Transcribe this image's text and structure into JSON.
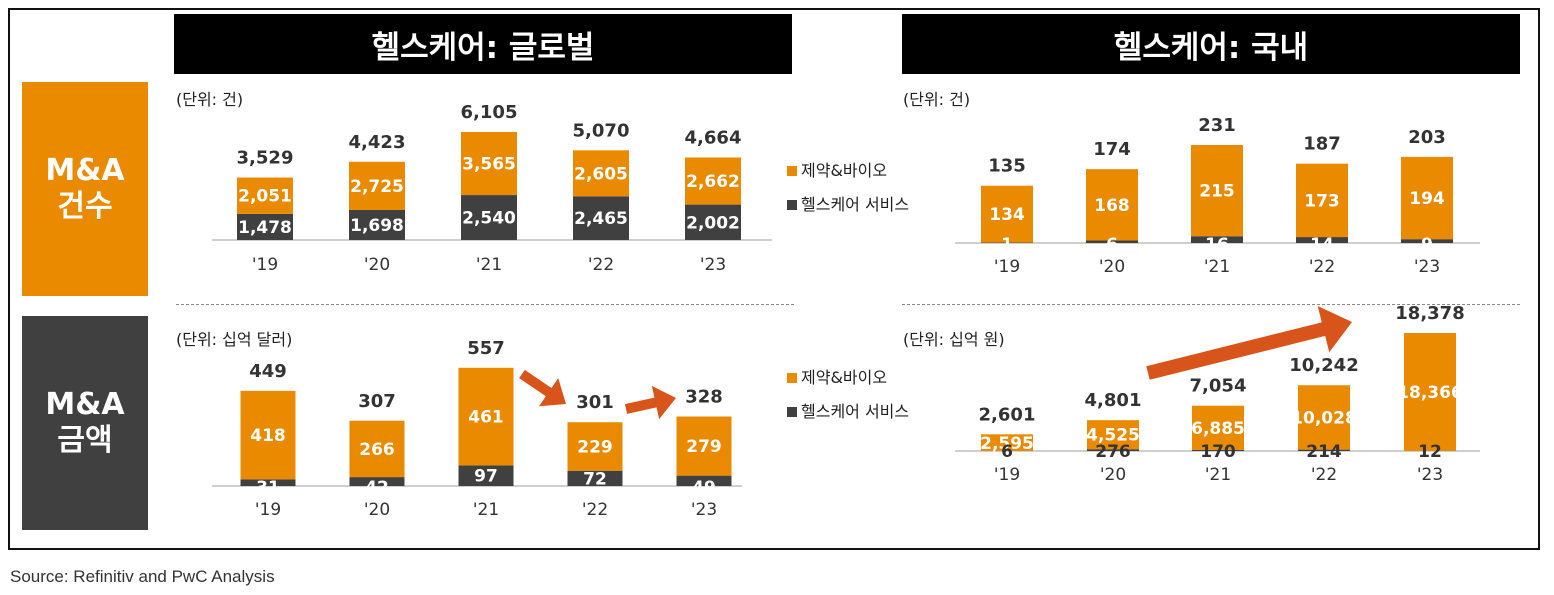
{
  "headers": {
    "global": "헬스케어: 글로벌",
    "domestic": "헬스케어: 국내"
  },
  "row_labels": {
    "count": [
      "M&A",
      "건수"
    ],
    "amount": [
      "M&A",
      "금액"
    ]
  },
  "source": "Source: Refinitiv and PwC Analysis",
  "colors": {
    "pharma": "#E98A00",
    "service": "#404040",
    "arrow": "#D9541B",
    "header": "#000000"
  },
  "chart_data": [
    {
      "id": "global-count",
      "type": "bar",
      "stacked": true,
      "unit_label": "(단위: 건)",
      "categories": [
        "'19",
        "'20",
        "'21",
        "'22",
        "'23"
      ],
      "series": [
        {
          "name": "헬스케어 서비스",
          "values": [
            1478,
            1698,
            2540,
            2465,
            2002
          ]
        },
        {
          "name": "제약&바이오",
          "values": [
            2051,
            2725,
            3565,
            2605,
            2662
          ]
        }
      ],
      "totals": [
        3529,
        4423,
        6105,
        5070,
        4664
      ],
      "legend_position": "right",
      "ylim": [
        0,
        6105
      ]
    },
    {
      "id": "global-amount",
      "type": "bar",
      "stacked": true,
      "unit_label": "(단위: 십억 달러)",
      "categories": [
        "'19",
        "'20",
        "'21",
        "'22",
        "'23"
      ],
      "series": [
        {
          "name": "헬스케어 서비스",
          "values": [
            31,
            42,
            97,
            72,
            49
          ]
        },
        {
          "name": "제약&바이오",
          "values": [
            418,
            266,
            461,
            229,
            279
          ]
        }
      ],
      "totals": [
        449,
        307,
        557,
        301,
        328
      ],
      "legend_position": "right",
      "ylim": [
        0,
        557
      ],
      "annotations": [
        "arrow '21 → '22 (down)",
        "arrow '22 → '23 (up)"
      ]
    },
    {
      "id": "domestic-count",
      "type": "bar",
      "stacked": true,
      "unit_label": "(단위: 건)",
      "categories": [
        "'19",
        "'20",
        "'21",
        "'22",
        "'23"
      ],
      "series": [
        {
          "name": "헬스케어 서비스",
          "values": [
            1,
            6,
            16,
            14,
            9
          ]
        },
        {
          "name": "제약&바이오",
          "values": [
            134,
            168,
            215,
            173,
            194
          ]
        }
      ],
      "totals": [
        135,
        174,
        231,
        187,
        203
      ],
      "ylim": [
        0,
        231
      ]
    },
    {
      "id": "domestic-amount",
      "type": "bar",
      "stacked": true,
      "unit_label": "(단위: 십억 원)",
      "categories": [
        "'19",
        "'20",
        "'21",
        "'22",
        "'23"
      ],
      "series": [
        {
          "name": "헬스케어 서비스",
          "values": [
            6,
            276,
            170,
            214,
            12
          ]
        },
        {
          "name": "제약&바이오",
          "values": [
            2595,
            4525,
            6885,
            10028,
            18366
          ]
        }
      ],
      "totals": [
        2601,
        4801,
        7054,
        10242,
        18378
      ],
      "ylim": [
        0,
        18378
      ],
      "annotations": [
        "arrow trend '20 → '23 (up)"
      ]
    }
  ]
}
